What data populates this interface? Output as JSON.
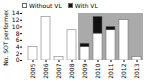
{
  "chart_data": {
    "type": "bar",
    "stacked": true,
    "categories": [
      "2005",
      "2006",
      "2007",
      "2008",
      "2009",
      "2010",
      "2011",
      "2012",
      "2013"
    ],
    "series": [
      {
        "name": "Without VL",
        "color": "#ffffff",
        "values": [
          4,
          13,
          1,
          9,
          4,
          8,
          9,
          12,
          1
        ]
      },
      {
        "name": "With VL",
        "color": "#111111",
        "values": [
          0,
          0,
          0,
          0,
          1,
          5,
          1,
          0,
          0
        ]
      }
    ],
    "shaded": {
      "start": "2009",
      "end": "2013",
      "color": "#aaaaaa"
    },
    "ylabel": "No. SOT performed",
    "ylim": [
      0,
      14
    ],
    "yticks": [
      0,
      2,
      4,
      6,
      8,
      10,
      12,
      14
    ],
    "legend": "upper left"
  }
}
